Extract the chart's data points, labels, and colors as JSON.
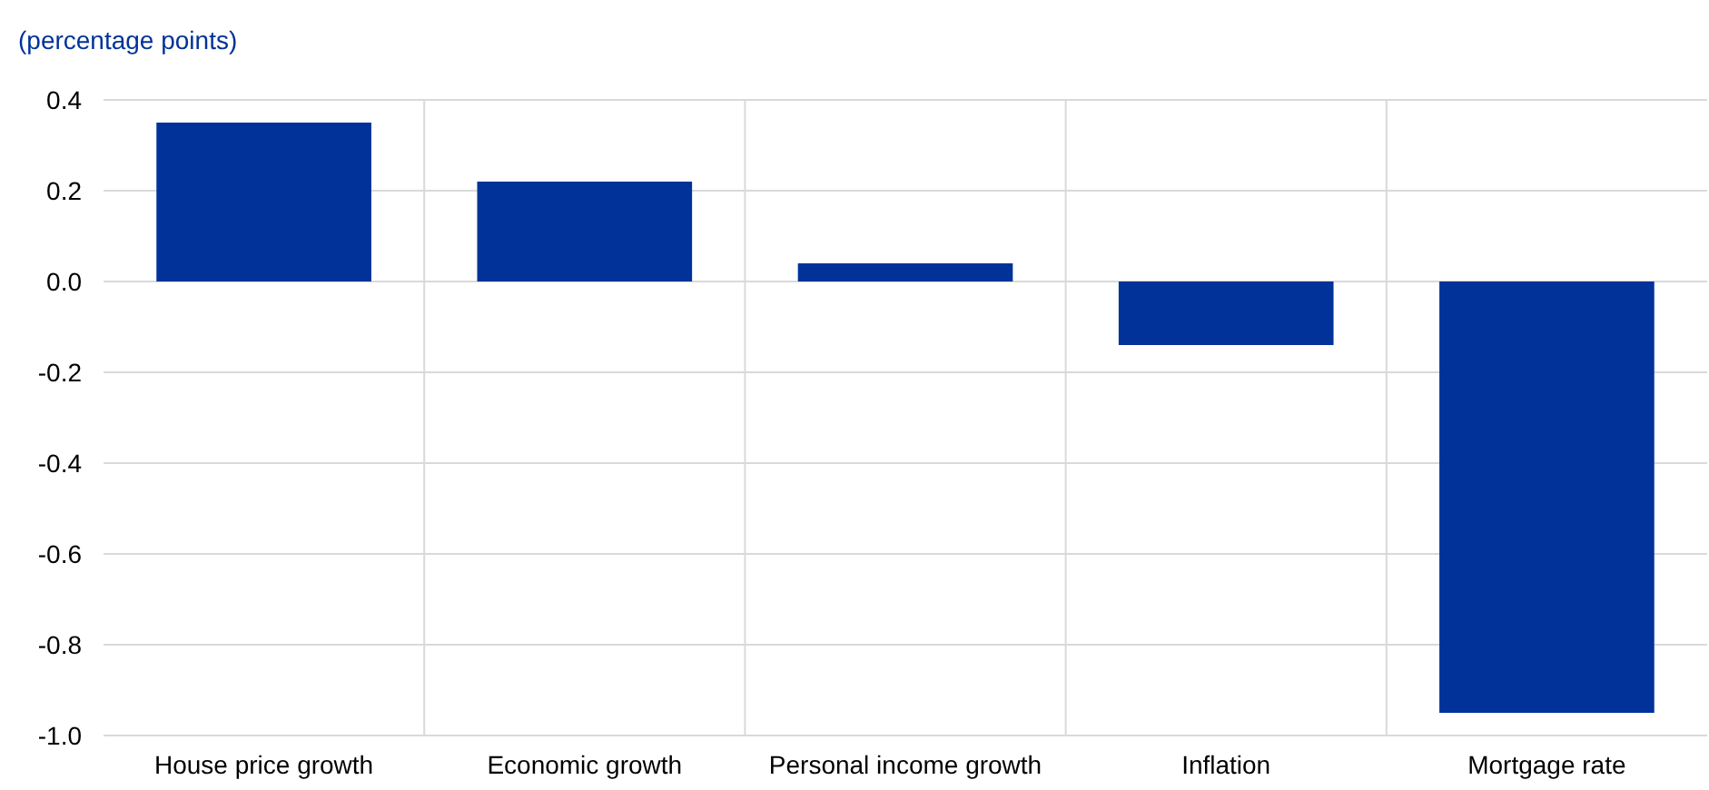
{
  "chart_data": {
    "type": "bar",
    "ylabel": "(percentage points)",
    "categories": [
      "House price growth",
      "Economic growth",
      "Personal income growth",
      "Inflation",
      "Mortgage rate"
    ],
    "values": [
      0.35,
      0.22,
      0.04,
      -0.14,
      -0.95
    ],
    "color": "#003299",
    "ylim": [
      -1.0,
      0.4
    ],
    "yticks": [
      {
        "value": -1.0,
        "label": "-1.0"
      },
      {
        "value": -0.8,
        "label": "-0.8"
      },
      {
        "value": -0.6,
        "label": "-0.6"
      },
      {
        "value": -0.4,
        "label": "-0.4"
      },
      {
        "value": -0.2,
        "label": "-0.2"
      },
      {
        "value": 0,
        "label": "0.0"
      },
      {
        "value": 0.2,
        "label": "0.2"
      },
      {
        "value": 0.4,
        "label": "0.4"
      }
    ],
    "grid": true
  }
}
